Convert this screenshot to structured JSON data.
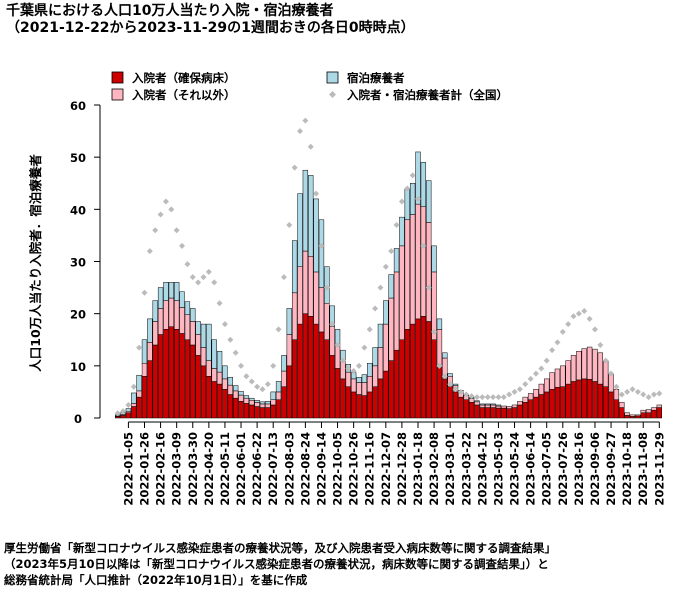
{
  "chart_data": {
    "type": "bar",
    "title": "千葉県における人口10万人当たり入院・宿泊療養者",
    "subtitle": "（2021-12-22から2023-11-29の1週間おきの各日0時時点）",
    "ylabel": "人口10万人当たり入院者．宿泊療養者",
    "xlabel": "",
    "ylim": [
      0,
      60
    ],
    "yticks": [
      0,
      10,
      20,
      30,
      40,
      50,
      60
    ],
    "stacked": true,
    "grid": false,
    "legend_position": "top",
    "x_tick_labels": [
      "2022-01-05",
      "2022-01-26",
      "2022-02-16",
      "2022-03-09",
      "2022-03-30",
      "2022-04-20",
      "2022-05-11",
      "2022-06-01",
      "2022-06-22",
      "2022-07-13",
      "2022-08-03",
      "2022-08-24",
      "2022-09-14",
      "2022-10-05",
      "2022-10-26",
      "2022-11-16",
      "2022-12-07",
      "2022-12-28",
      "2023-01-18",
      "2023-02-08",
      "2023-03-01",
      "2023-03-22",
      "2023-04-12",
      "2023-05-03",
      "2023-05-24",
      "2023-06-14",
      "2023-07-05",
      "2023-07-26",
      "2023-08-16",
      "2023-09-06",
      "2023-09-27",
      "2023-10-18",
      "2023-11-08",
      "2023-11-29"
    ],
    "x": [
      "2021-12-22",
      "2021-12-29",
      "2022-01-05",
      "2022-01-12",
      "2022-01-19",
      "2022-01-26",
      "2022-02-02",
      "2022-02-09",
      "2022-02-16",
      "2022-02-23",
      "2022-03-02",
      "2022-03-09",
      "2022-03-16",
      "2022-03-23",
      "2022-03-30",
      "2022-04-06",
      "2022-04-13",
      "2022-04-20",
      "2022-04-27",
      "2022-05-04",
      "2022-05-11",
      "2022-05-18",
      "2022-05-25",
      "2022-06-01",
      "2022-06-08",
      "2022-06-15",
      "2022-06-22",
      "2022-06-29",
      "2022-07-06",
      "2022-07-13",
      "2022-07-20",
      "2022-07-27",
      "2022-08-03",
      "2022-08-10",
      "2022-08-17",
      "2022-08-24",
      "2022-08-31",
      "2022-09-07",
      "2022-09-14",
      "2022-09-21",
      "2022-09-28",
      "2022-10-05",
      "2022-10-12",
      "2022-10-19",
      "2022-10-26",
      "2022-11-02",
      "2022-11-09",
      "2022-11-16",
      "2022-11-23",
      "2022-11-30",
      "2022-12-07",
      "2022-12-14",
      "2022-12-21",
      "2022-12-28",
      "2023-01-04",
      "2023-01-11",
      "2023-01-18",
      "2023-01-25",
      "2023-02-01",
      "2023-02-08",
      "2023-02-15",
      "2023-02-22",
      "2023-03-01",
      "2023-03-08",
      "2023-03-15",
      "2023-03-22",
      "2023-03-29",
      "2023-04-05",
      "2023-04-12",
      "2023-04-19",
      "2023-04-26",
      "2023-05-03",
      "2023-05-10",
      "2023-05-17",
      "2023-05-24",
      "2023-05-31",
      "2023-06-07",
      "2023-06-14",
      "2023-06-21",
      "2023-06-28",
      "2023-07-05",
      "2023-07-12",
      "2023-07-19",
      "2023-07-26",
      "2023-08-02",
      "2023-08-09",
      "2023-08-16",
      "2023-08-23",
      "2023-08-30",
      "2023-09-06",
      "2023-09-13",
      "2023-09-20",
      "2023-09-27",
      "2023-10-04",
      "2023-10-11",
      "2023-10-18",
      "2023-10-25",
      "2023-11-01",
      "2023-11-08",
      "2023-11-15",
      "2023-11-22",
      "2023-11-29"
    ],
    "series": [
      {
        "name": "入院者（確保病床）",
        "color": "#cc0000",
        "values": [
          0.3,
          0.5,
          1.0,
          2.2,
          4.0,
          8.0,
          11.0,
          14.0,
          16.0,
          17.0,
          17.5,
          17.0,
          16.2,
          15.0,
          14.0,
          12.0,
          10.0,
          8.0,
          7.0,
          6.5,
          5.5,
          4.5,
          3.8,
          3.2,
          2.8,
          2.5,
          2.2,
          2.0,
          2.0,
          2.5,
          3.5,
          6.0,
          10.0,
          15.0,
          18.0,
          20.0,
          19.5,
          18.0,
          16.5,
          15.0,
          12.0,
          9.5,
          7.5,
          6.0,
          5.0,
          4.5,
          4.3,
          5.0,
          6.0,
          7.5,
          9.0,
          11.0,
          13.0,
          15.0,
          17.0,
          18.0,
          19.0,
          19.5,
          18.5,
          15.0,
          10.0,
          7.5,
          6.0,
          5.0,
          4.0,
          3.5,
          3.0,
          2.5,
          2.0,
          2.0,
          2.0,
          1.9,
          1.9,
          1.8,
          2.0,
          2.5,
          3.0,
          3.5,
          4.0,
          4.5,
          5.0,
          5.5,
          5.9,
          6.0,
          6.5,
          7.0,
          7.3,
          7.5,
          7.4,
          7.0,
          6.5,
          6.0,
          5.0,
          3.5,
          2.0,
          0.5,
          0.3,
          0.4,
          1.0,
          1.0,
          1.5,
          2.0
        ]
      },
      {
        "name": "入院者（それ以外）",
        "color": "#ffb6c1",
        "values": [
          0.1,
          0.2,
          0.3,
          0.6,
          1.2,
          2.5,
          3.5,
          4.5,
          5.0,
          5.5,
          5.5,
          5.5,
          5.0,
          4.8,
          4.5,
          4.0,
          3.5,
          3.0,
          2.5,
          2.3,
          2.0,
          1.8,
          1.4,
          1.2,
          1.0,
          0.9,
          0.8,
          0.7,
          0.7,
          1.0,
          1.5,
          3.0,
          6.0,
          9.0,
          11.0,
          12.0,
          11.5,
          10.0,
          8.5,
          7.0,
          5.5,
          4.5,
          3.5,
          2.8,
          2.5,
          2.3,
          2.5,
          3.0,
          4.0,
          6.0,
          9.0,
          12.0,
          15.0,
          18.0,
          21.0,
          21.0,
          22.0,
          21.0,
          19.0,
          13.0,
          7.0,
          4.0,
          2.0,
          1.2,
          1.0,
          0.8,
          0.7,
          0.6,
          0.5,
          0.5,
          0.5,
          0.4,
          0.4,
          0.4,
          0.5,
          0.7,
          1.0,
          1.2,
          1.5,
          2.0,
          2.5,
          3.2,
          3.5,
          4.0,
          4.5,
          5.0,
          5.5,
          5.8,
          6.2,
          6.2,
          6.0,
          5.0,
          3.5,
          2.0,
          1.0,
          0.5,
          0.3,
          0.2,
          0.5,
          0.6,
          0.5,
          0.5
        ]
      },
      {
        "name": "宿泊療養者",
        "color": "#add8e6",
        "values": [
          0.2,
          0.3,
          0.5,
          2.0,
          3.0,
          4.5,
          4.5,
          4.0,
          4.0,
          3.5,
          3.0,
          3.5,
          3.0,
          2.5,
          2.5,
          2.5,
          4.5,
          7.0,
          5.5,
          4.0,
          2.5,
          1.5,
          1.0,
          0.7,
          0.5,
          0.4,
          0.4,
          0.4,
          0.5,
          1.5,
          2.0,
          3.0,
          5.0,
          10.0,
          14.0,
          15.5,
          15.5,
          14.0,
          13.0,
          7.0,
          4.0,
          3.0,
          2.0,
          1.5,
          1.2,
          1.0,
          1.5,
          2.5,
          3.5,
          4.5,
          4.5,
          4.5,
          4.5,
          5.5,
          6.0,
          6.0,
          10.0,
          8.5,
          8.0,
          5.0,
          2.0,
          1.0,
          0.5,
          0.3,
          0.3,
          0.2,
          0.2,
          0.2,
          0.2,
          0.2,
          0.2,
          0.2,
          0,
          0,
          0,
          0,
          0,
          0,
          0,
          0,
          0,
          0,
          0,
          0,
          0,
          0,
          0,
          0,
          0,
          0,
          0,
          0,
          0,
          0,
          0,
          0,
          0,
          0,
          0,
          0,
          0,
          0
        ]
      },
      {
        "name": "入院者・宿泊療養者計（全国）",
        "type": "scatter",
        "color": "#bbbbbb",
        "values": [
          0.9,
          1.3,
          2.5,
          6.0,
          13.5,
          24.0,
          32.0,
          36.0,
          39.0,
          41.5,
          40.0,
          36.0,
          33.0,
          29.5,
          27.0,
          26.0,
          27.0,
          28.0,
          26.0,
          22.0,
          18.0,
          15.0,
          12.5,
          10.0,
          8.0,
          7.0,
          6.0,
          5.5,
          6.5,
          10.0,
          17.0,
          27.0,
          37.0,
          48.0,
          55.0,
          57.0,
          52.0,
          43.0,
          33.0,
          25.0,
          18.0,
          14.0,
          11.0,
          9.5,
          9.0,
          10.0,
          13.5,
          17.0,
          21.0,
          25.0,
          29.0,
          32.0,
          37.0,
          41.5,
          44.0,
          46.5,
          42.0,
          33.0,
          25.0,
          16.5,
          10.0,
          8.0,
          6.5,
          5.5,
          5.0,
          4.5,
          4.2,
          4.0,
          4.0,
          4.0,
          4.0,
          4.0,
          4.0,
          4.5,
          5.0,
          5.5,
          6.5,
          7.5,
          8.5,
          9.5,
          11.0,
          13.0,
          14.5,
          16.5,
          18.0,
          19.5,
          20.0,
          20.5,
          19.0,
          17.0,
          14.0,
          11.0,
          8.5,
          6.0,
          4.5,
          5.0,
          5.5,
          5.0,
          4.5,
          4.0,
          4.5,
          4.7
        ]
      }
    ]
  },
  "source_lines": [
    "厚生労働省「新型コロナウイルス感染症患者の療養状況等，及び入院患者受入病床数等に関する調査結果」",
    "（2023年5月10日以降は「新型コロナウイルス感染症患者の療養状況，病床数等に関する調査結果」）と",
    "総務省統計局「人口推計（2022年10月1日）」を基に作成"
  ]
}
